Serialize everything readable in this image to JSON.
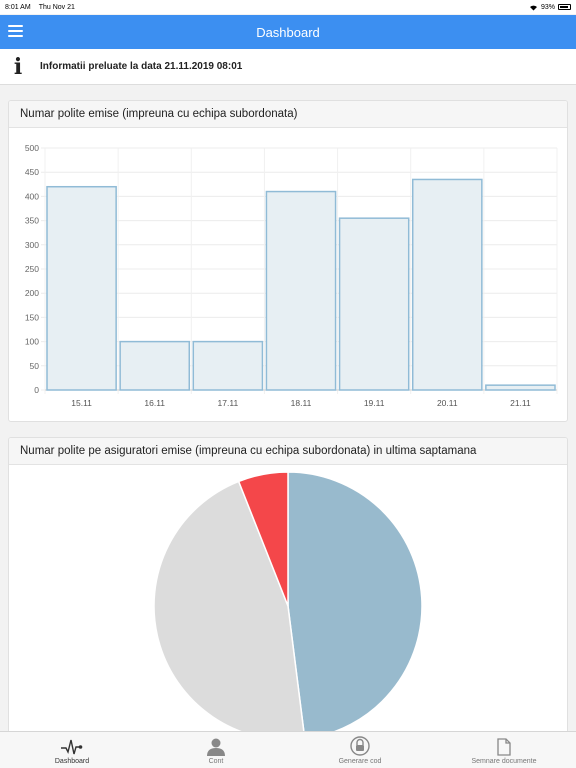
{
  "status_bar": {
    "time": "8:01 AM",
    "date": "Thu Nov 21",
    "battery": "93%"
  },
  "header": {
    "title": "Dashboard",
    "menu_icon": "hamburger-icon"
  },
  "info": {
    "icon": "info-icon",
    "text": "Informatii preluate la data 21.11.2019 08:01"
  },
  "bar_card": {
    "title": "Numar polite emise (impreuna cu echipa subordonata)"
  },
  "pie_card": {
    "title": "Numar polite pe asiguratori emise (impreuna cu echipa subordonata) in ultima saptamana"
  },
  "colors": {
    "accent": "#3c8ff1",
    "bar_fill": "#e7eff3",
    "bar_stroke": "#90bbd6",
    "pie_blue": "#98bacd",
    "pie_gray": "#dcdcdc",
    "pie_red": "#f4474a"
  },
  "chart_data": [
    {
      "type": "bar",
      "categories": [
        "15.11",
        "16.11",
        "17.11",
        "18.11",
        "19.11",
        "20.11",
        "21.11"
      ],
      "values": [
        420,
        100,
        100,
        410,
        355,
        435,
        10
      ],
      "title": "Numar polite emise (impreuna cu echipa subordonata)",
      "xlabel": "",
      "ylabel": "",
      "ylim": [
        0,
        500
      ],
      "yticks": [
        0,
        50,
        100,
        150,
        200,
        250,
        300,
        350,
        400,
        450,
        500
      ],
      "grid": true
    },
    {
      "type": "pie",
      "title": "Numar polite pe asiguratori emise (impreuna cu echipa subordonata) in ultima saptamana",
      "values": [
        48,
        46,
        6
      ],
      "colors": [
        "#98bacd",
        "#dcdcdc",
        "#f4474a"
      ]
    }
  ],
  "tabs": [
    {
      "label": "Dashboard",
      "icon": "pulse-icon",
      "active": true
    },
    {
      "label": "Cont",
      "icon": "user-icon",
      "active": false
    },
    {
      "label": "Generare cod",
      "icon": "lock-icon",
      "active": false
    },
    {
      "label": "Semnare documente",
      "icon": "document-icon",
      "active": false
    }
  ]
}
